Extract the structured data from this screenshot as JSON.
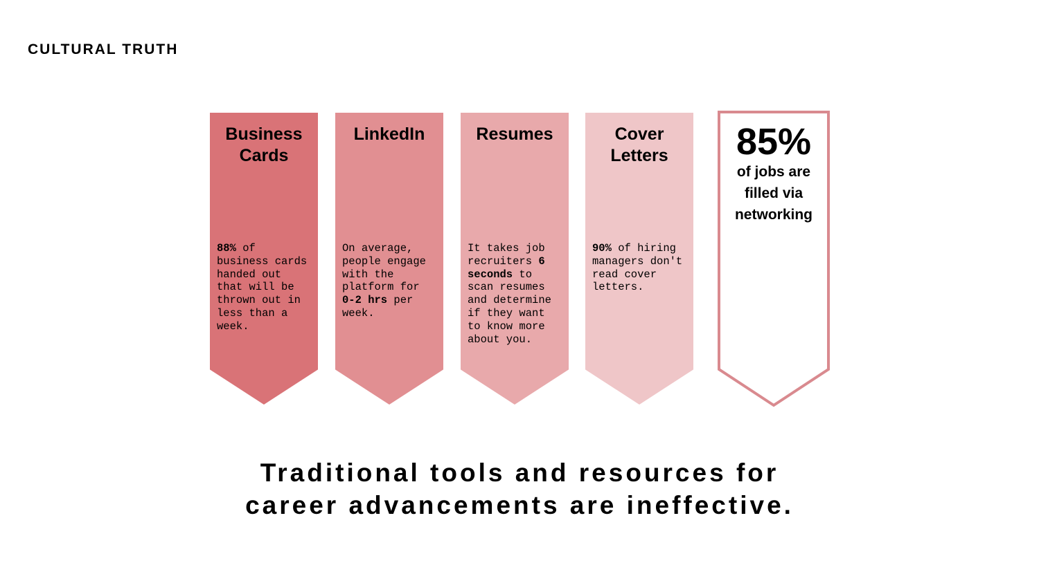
{
  "slide_label": "CULTURAL TRUTH",
  "banners": [
    {
      "title": "Business\nCards",
      "color": "#d97377",
      "text": [
        {
          "t": "88%",
          "b": true
        },
        {
          "t": " of business cards handed out that will be thrown out in less than a week.",
          "b": false
        }
      ]
    },
    {
      "title": "LinkedIn",
      "color": "#e18f92",
      "text": [
        {
          "t": "On average, people engage with the platform for ",
          "b": false
        },
        {
          "t": "0-2 hrs",
          "b": true
        },
        {
          "t": " per week.",
          "b": false
        }
      ]
    },
    {
      "title": "Resumes",
      "color": "#e8a9ab",
      "text": [
        {
          "t": "It takes job recruiters ",
          "b": false
        },
        {
          "t": "6 seconds",
          "b": true
        },
        {
          "t": " to scan resumes and determine if they want to know more about you.",
          "b": false
        }
      ]
    },
    {
      "title": "Cover\nLetters",
      "color": "#efc6c8",
      "text": [
        {
          "t": "90%",
          "b": true
        },
        {
          "t": " of hiring managers don't read cover letters.",
          "b": false
        }
      ]
    }
  ],
  "stat": {
    "value": "85%",
    "caption": "of jobs are\nfilled via\nnetworking",
    "border_color": "#d98a8f"
  },
  "conclusion": "Traditional tools and resources for\ncareer advancements are ineffective."
}
